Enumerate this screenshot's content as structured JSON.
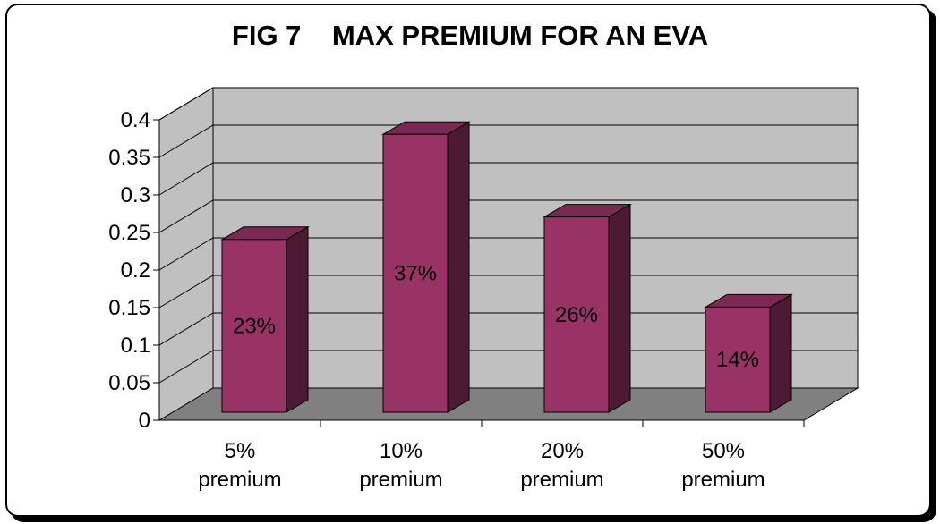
{
  "chart_data": {
    "type": "bar",
    "title": "FIG 7    MAX PREMIUM FOR AN EVA",
    "categories": [
      [
        "5%",
        "premium"
      ],
      [
        "10%",
        "premium"
      ],
      [
        "20%",
        "premium"
      ],
      [
        "50%",
        "premium"
      ]
    ],
    "values": [
      0.23,
      0.37,
      0.26,
      0.14
    ],
    "data_labels": [
      "23%",
      "37%",
      "26%",
      "14%"
    ],
    "y_ticks": [
      "0",
      "0.05",
      "0.1",
      "0.15",
      "0.2",
      "0.25",
      "0.3",
      "0.35",
      "0.4"
    ],
    "ylim": [
      0,
      0.4
    ],
    "grid": true,
    "style": "3d-column",
    "colors": {
      "bar_front": "#993366",
      "bar_side": "#4d1a33",
      "bar_top": "#7a2952",
      "wall": "#c0c0c0",
      "floor": "#808080"
    }
  }
}
